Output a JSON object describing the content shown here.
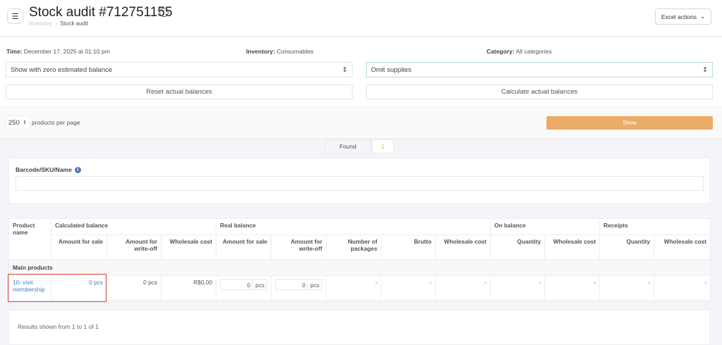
{
  "header": {
    "title": "Stock audit #712751155",
    "breadcrumb": [
      "Inventory",
      "Stock audit"
    ],
    "excel_actions": "Excel actions"
  },
  "filters": {
    "time_label": "Time:",
    "time_value": "December 17, 2025 at 01:10 pm",
    "inventory_label": "Inventory:",
    "inventory_value": "Consumables",
    "category_label": "Category:",
    "category_value": "All categories",
    "balance_select": "Show with zero estimated balance",
    "supplies_select": "Omit supplies",
    "reset_button": "Reset actual balances",
    "calculate_button": "Calculate actual balances"
  },
  "pagination": {
    "per_page": "250",
    "per_page_label": "products per page",
    "show_button": "Show"
  },
  "tabs": {
    "found_label": "Found",
    "found_count": "1"
  },
  "search": {
    "label": "Barcode/SKU/Name",
    "value": ""
  },
  "table": {
    "groups": {
      "product": "Product name",
      "calculated": "Calculated balance",
      "real": "Real balance",
      "on_balance": "On balance",
      "receipts": "Receipts"
    },
    "columns": [
      "Amount for sale",
      "Amount for write-off",
      "Wholesale cost",
      "Amount for sale",
      "Amount for write-off",
      "Number of packages",
      "Brutto",
      "Wholesale cost",
      "Quantity",
      "Wholesale cost",
      "Quantity",
      "Wholesale cost"
    ],
    "section": "Main products",
    "rows": [
      {
        "name": "10- visit membership",
        "calc_sale": "0 pcs",
        "calc_writeoff": "0 pcs",
        "calc_cost": "R$0,00",
        "real_sale": "0",
        "real_sale_unit": "pcs",
        "real_writeoff": "0",
        "real_writeoff_unit": "pcs",
        "packages": "-",
        "brutto": "-",
        "real_cost": "-",
        "on_qty": "-",
        "on_cost": "-",
        "rec_qty": "-",
        "rec_cost": "-"
      }
    ]
  },
  "footer": {
    "results": "Results shown from 1 to 1 of 1"
  },
  "colors": {
    "accent": "#ecab67",
    "link": "#4a7cc0",
    "highlight": "#e2442f"
  }
}
